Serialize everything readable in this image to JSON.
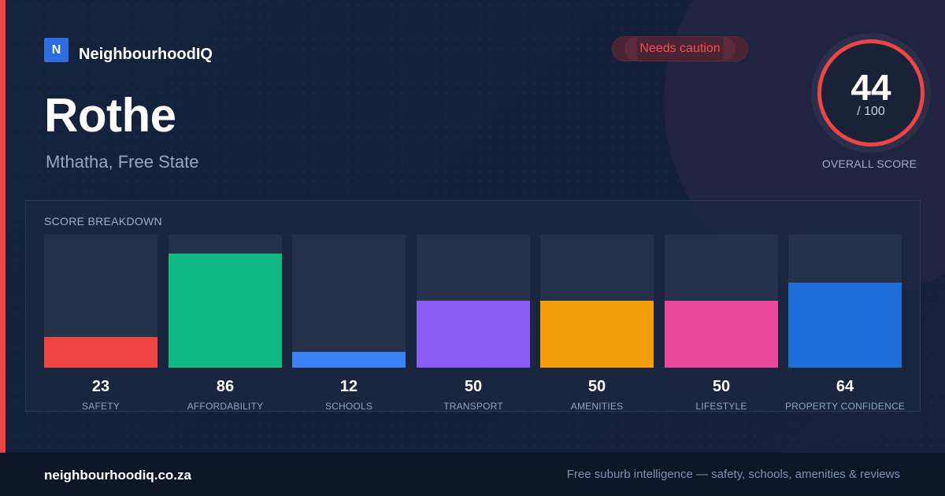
{
  "brand": {
    "logo_letter": "N",
    "name": "NeighbourhoodIQ",
    "accent_color": "#ef4444"
  },
  "suburb": {
    "name": "Rothe",
    "location": "Mthatha, Free State"
  },
  "badge": {
    "label": "Needs caution",
    "color": "#f05252"
  },
  "overall": {
    "score": "44",
    "out_of": "/ 100",
    "label": "OVERALL SCORE"
  },
  "breakdown": {
    "title": "SCORE BREAKDOWN",
    "max": 100,
    "items": [
      {
        "label": "SAFETY",
        "value": 23,
        "color": "#ef4444"
      },
      {
        "label": "AFFORDABILITY",
        "value": 86,
        "color": "#10b981"
      },
      {
        "label": "SCHOOLS",
        "value": 12,
        "color": "#3b82f6"
      },
      {
        "label": "TRANSPORT",
        "value": 50,
        "color": "#8b5cf6"
      },
      {
        "label": "AMENITIES",
        "value": 50,
        "color": "#f59e0b"
      },
      {
        "label": "LIFESTYLE",
        "value": 50,
        "color": "#ec4899"
      },
      {
        "label": "PROPERTY CONFIDENCE",
        "value": 64,
        "color": "#1d6fd8"
      }
    ]
  },
  "footer": {
    "url": "neighbourhoodiq.co.za",
    "tagline": "Free suburb intelligence — safety, schools, amenities & reviews"
  }
}
